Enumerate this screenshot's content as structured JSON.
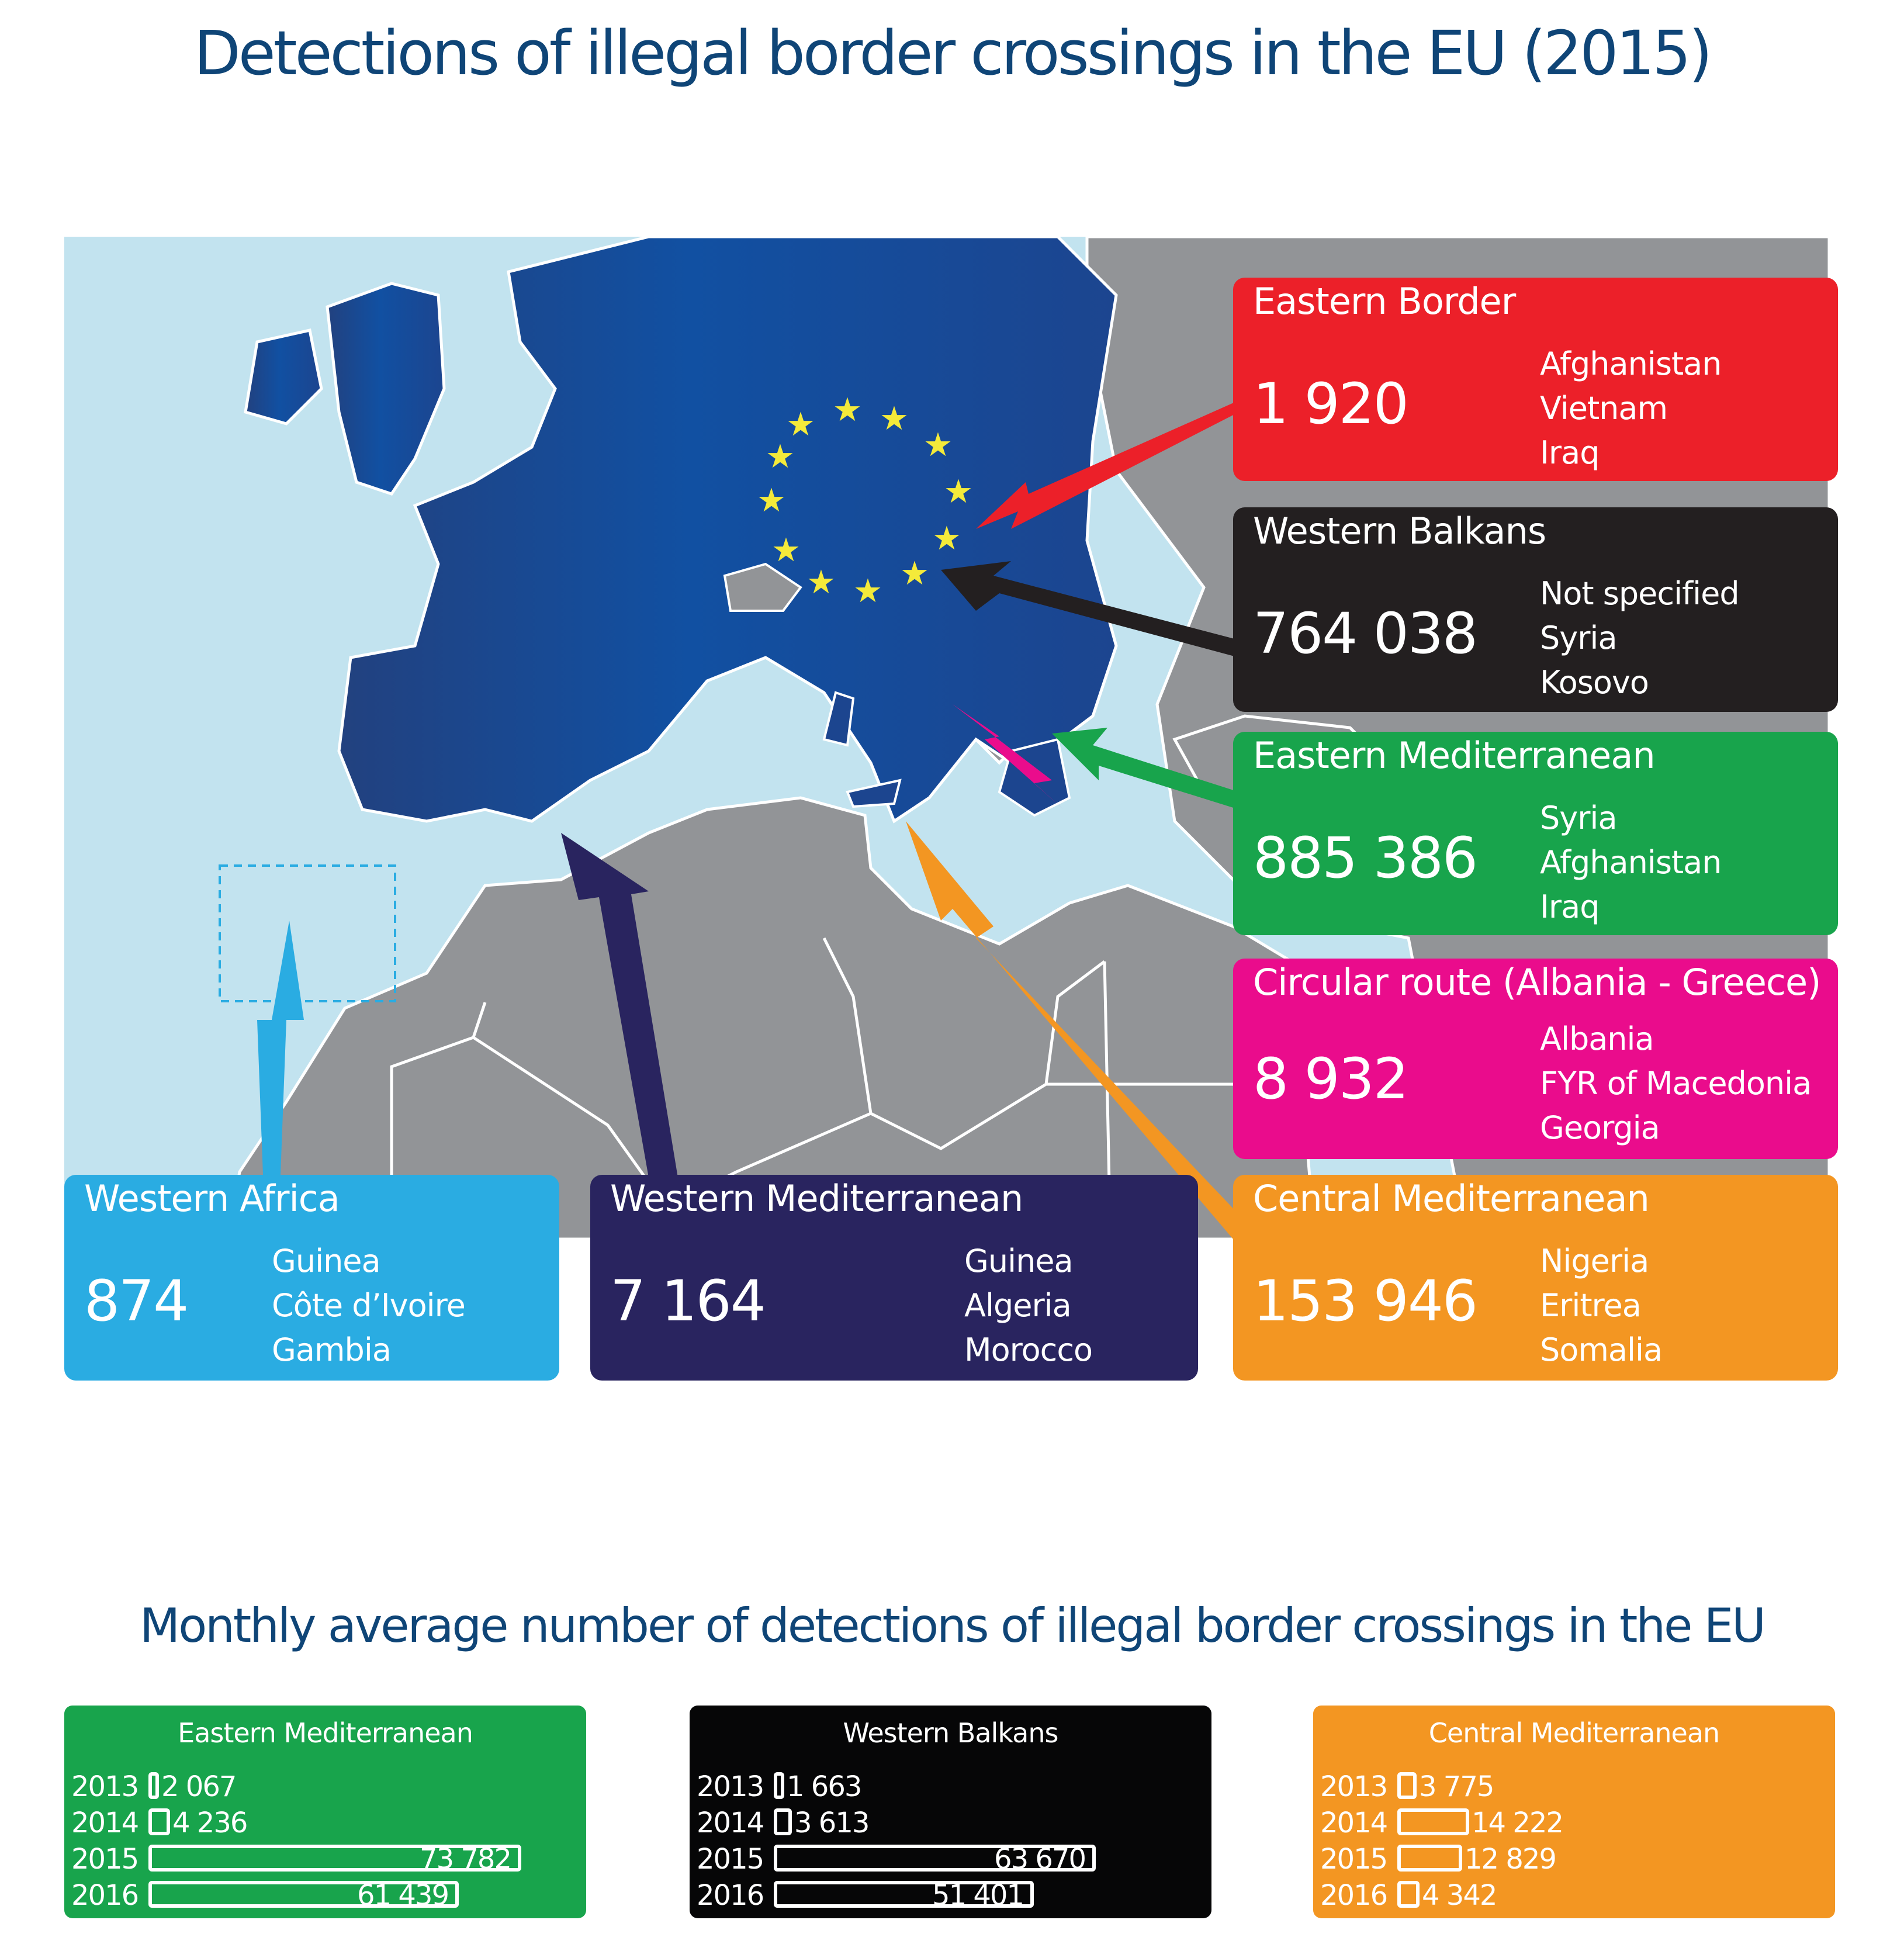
{
  "title": "Detections of illegal border crossings in the EU (2015)",
  "colors": {
    "title": "#0f4577",
    "eastern_border": "#ec2029",
    "western_balkans": "#231f20",
    "eastern_mediterranean": "#18a44c",
    "circular_route": "#ea0c8c",
    "western_africa": "#2aace2",
    "western_mediterranean": "#29245f",
    "central_mediterranean": "#f39622",
    "sea": "#c2e3ef",
    "eu_land": "#1a4d9a",
    "non_eu_land": "#929497",
    "stars": "#f4ea3a"
  },
  "routes": [
    {
      "id": "eastern_border",
      "name": "Eastern Border",
      "total": "1 920",
      "nationalities": [
        "Afghanistan",
        "Vietnam",
        "Iraq"
      ]
    },
    {
      "id": "western_balkans",
      "name": "Western Balkans",
      "total": "764 038",
      "nationalities": [
        "Not specified",
        "Syria",
        "Kosovo"
      ]
    },
    {
      "id": "eastern_mediterranean",
      "name": "Eastern Mediterranean",
      "total": "885 386",
      "nationalities": [
        "Syria",
        "Afghanistan",
        "Iraq"
      ]
    },
    {
      "id": "circular_route",
      "name": "Circular route (Albania - Greece)",
      "total": "8 932",
      "nationalities": [
        "Albania",
        "FYR of Macedonia",
        "Georgia"
      ]
    },
    {
      "id": "western_africa",
      "name": "Western Africa",
      "total": "874",
      "nationalities": [
        "Guinea",
        "Côte d’Ivoire",
        "Gambia"
      ]
    },
    {
      "id": "western_mediterranean",
      "name": "Western Mediterranean",
      "total": "7 164",
      "nationalities": [
        "Guinea",
        "Algeria",
        "Morocco"
      ]
    },
    {
      "id": "central_mediterranean",
      "name": "Central Mediterranean",
      "total": "153 946",
      "nationalities": [
        "Nigeria",
        "Eritrea",
        "Somalia"
      ]
    }
  ],
  "subtitle": "Monthly average number of detections of illegal border crossings in the EU",
  "chart_data": [
    {
      "type": "bar",
      "title": "Eastern Mediterranean",
      "categories": [
        "2013",
        "2014",
        "2015",
        "2016"
      ],
      "values": [
        2067,
        4236,
        73782,
        61439
      ],
      "labels": [
        "2 067",
        "4 236",
        "73 782",
        "61 439"
      ],
      "orientation": "horizontal",
      "grid": false
    },
    {
      "type": "bar",
      "title": "Western Balkans",
      "categories": [
        "2013",
        "2014",
        "2015",
        "2016"
      ],
      "values": [
        1663,
        3613,
        63670,
        51401
      ],
      "labels": [
        "1 663",
        "3 613",
        "63 670",
        "51 401"
      ],
      "orientation": "horizontal",
      "grid": false
    },
    {
      "type": "bar",
      "title": "Central Mediterranean",
      "categories": [
        "2013",
        "2014",
        "2015",
        "2016"
      ],
      "values": [
        3775,
        14222,
        12829,
        4342
      ],
      "labels": [
        "3 775",
        "14 222",
        "12 829",
        "4 342"
      ],
      "orientation": "horizontal",
      "grid": false
    }
  ]
}
